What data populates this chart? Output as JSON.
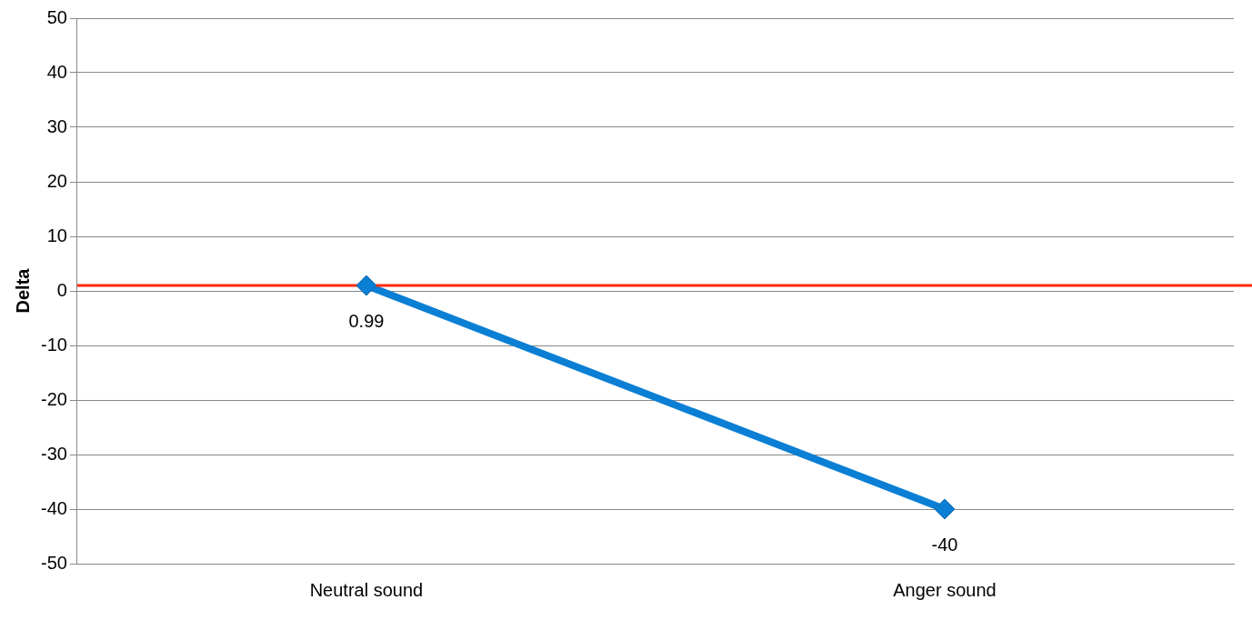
{
  "chart_data": {
    "type": "line",
    "ylabel": "Delta",
    "categories": [
      "Neutral sound",
      "Anger sound"
    ],
    "series": [
      {
        "color": "#0a7fd4",
        "values": [
          0.99,
          -40
        ]
      }
    ],
    "ylim": [
      -50,
      50
    ],
    "yticks": [
      -50,
      -40,
      -30,
      -20,
      -10,
      0,
      10,
      20,
      30,
      40,
      50
    ],
    "grid": "y",
    "marker": "diamond",
    "data_labels": true,
    "legend": false,
    "ref_lines": [
      {
        "axis": "y",
        "value": 1,
        "color": "#ff2a0a"
      }
    ]
  }
}
